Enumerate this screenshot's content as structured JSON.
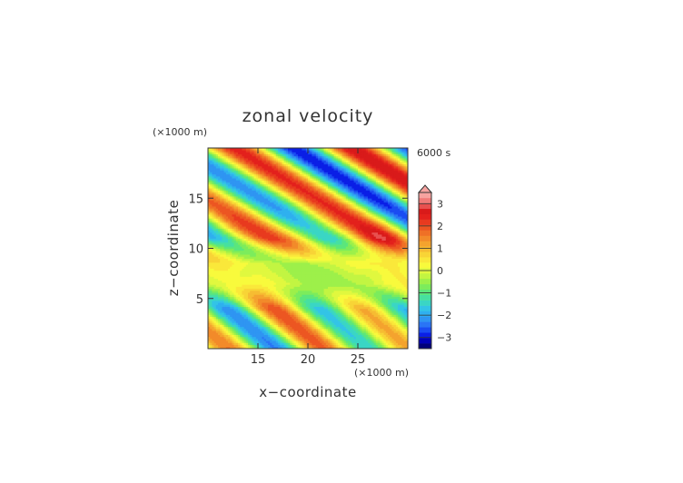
{
  "chart_data": {
    "type": "heatmap",
    "title": "zonal velocity",
    "xlabel": "x−coordinate",
    "ylabel": "z−coordinate",
    "x_unit": "(×1000 m)",
    "y_unit": "(×1000 m)",
    "time_label": "6000 s",
    "xlim": [
      10,
      30
    ],
    "ylim": [
      0,
      20
    ],
    "x_ticks": [
      "15",
      "20",
      "25"
    ],
    "y_ticks": [
      "5",
      "10",
      "15"
    ],
    "colorbar": {
      "min": -3.5,
      "max": 3.5,
      "step": 0.25,
      "tick_labels": [
        "-3",
        "-2",
        "-1",
        "0",
        "1",
        "2",
        "3"
      ],
      "colors": [
        "#00007a",
        "#0000b8",
        "#0a1fe6",
        "#1a4cf2",
        "#2a75f5",
        "#2f95f2",
        "#2fb0ef",
        "#33c4e6",
        "#3ad6c4",
        "#47e0a0",
        "#5be67c",
        "#7cec5c",
        "#9df04a",
        "#c2f542",
        "#e0f83f",
        "#f8fa3c",
        "#fae83a",
        "#f8d436",
        "#f6bc32",
        "#f4a32e",
        "#f28a2a",
        "#ef7026",
        "#ec5622",
        "#e83a1f",
        "#e3211c",
        "#d91a1a",
        "#e8504f",
        "#f07a78",
        "#f6a3a0"
      ]
    }
  }
}
